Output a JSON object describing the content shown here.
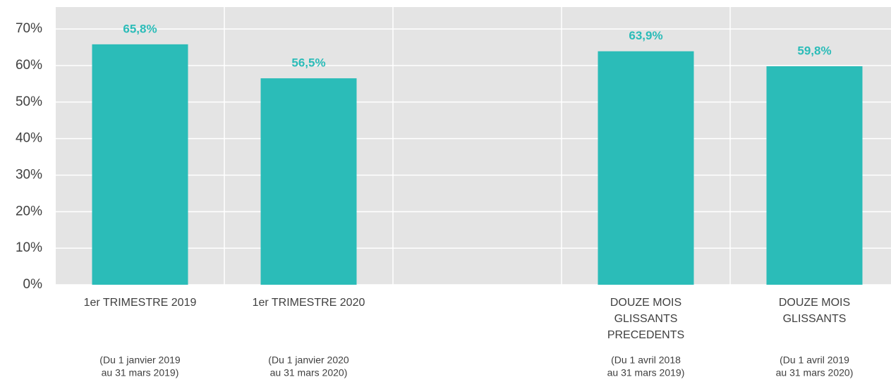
{
  "chart_data": {
    "type": "bar",
    "categories": [
      [
        "1er TRIMESTRE 2019"
      ],
      [
        "1er TRIMESTRE 2020"
      ],
      null,
      [
        "DOUZE MOIS",
        "GLISSANTS",
        "PRECEDENTS"
      ],
      [
        "DOUZE MOIS",
        "GLISSANTS"
      ]
    ],
    "periods": [
      [
        "(Du 1 janvier 2019",
        "au 31 mars 2019)"
      ],
      [
        "(Du 1 janvier 2020",
        "au 31 mars 2020)"
      ],
      null,
      [
        "(Du 1 avril 2018",
        "au 31 mars 2019)"
      ],
      [
        "(Du 1 avril 2019",
        "au 31 mars 2020)"
      ]
    ],
    "values": [
      65.8,
      56.5,
      null,
      63.9,
      59.8
    ],
    "value_labels": [
      "65,8%",
      "56,5%",
      null,
      "63,9%",
      "59,8%"
    ],
    "color": "#2bbcb8",
    "ylim": [
      0,
      76
    ],
    "yticks": [
      {
        "value": 0,
        "label": "0%"
      },
      {
        "value": 10,
        "label": "10%"
      },
      {
        "value": 20,
        "label": "20%"
      },
      {
        "value": 30,
        "label": "30%"
      },
      {
        "value": 40,
        "label": "40%"
      },
      {
        "value": 50,
        "label": "50%"
      },
      {
        "value": 60,
        "label": "60%"
      },
      {
        "value": 70,
        "label": "70%"
      }
    ],
    "grid": true
  }
}
